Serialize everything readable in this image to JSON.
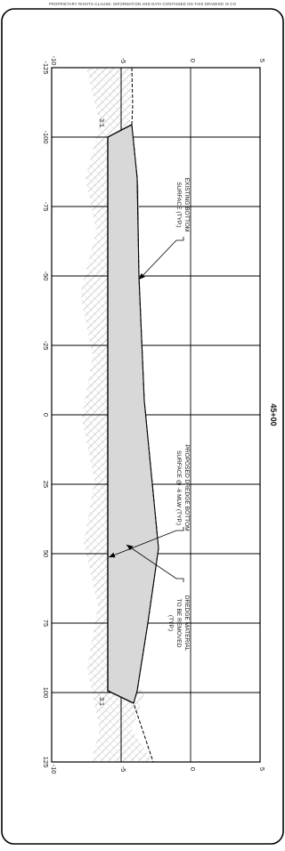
{
  "header": {
    "clause": "PROPRIETARY RIGHTS CLAUSE: INFORMATION AND DATA CONTAINED ON THIS DRAWING IS CO"
  },
  "section": {
    "station": "45+00"
  },
  "axes": {
    "station_ticks": [
      "-125",
      "-100",
      "-75",
      "-50",
      "-25",
      "0",
      "25",
      "50",
      "75",
      "100",
      "125"
    ],
    "elevation_ticks_left": [
      "5",
      "0",
      "-5",
      "-10"
    ],
    "elevation_ticks_right": [
      "5",
      "0",
      "-5",
      "-10"
    ]
  },
  "annotations": {
    "existing_bottom": [
      "EXISTING BOTTOM",
      "SURFACE (TYP.)"
    ],
    "proposed_dredge": [
      "PROPOSED DREDGE BOTTOM",
      "SURFACE @ -6 MLW (TYP.)"
    ],
    "dredge_material": [
      "DREDGE MATERIAL",
      "TO BE REMOVED",
      "(TYP.)"
    ],
    "slope_top": "3:1",
    "slope_bottom": "3:1"
  },
  "colors": {
    "dredge_fill": "#d8d8d8",
    "soil_hatch": "#bdbdbd",
    "line": "#000000"
  }
}
